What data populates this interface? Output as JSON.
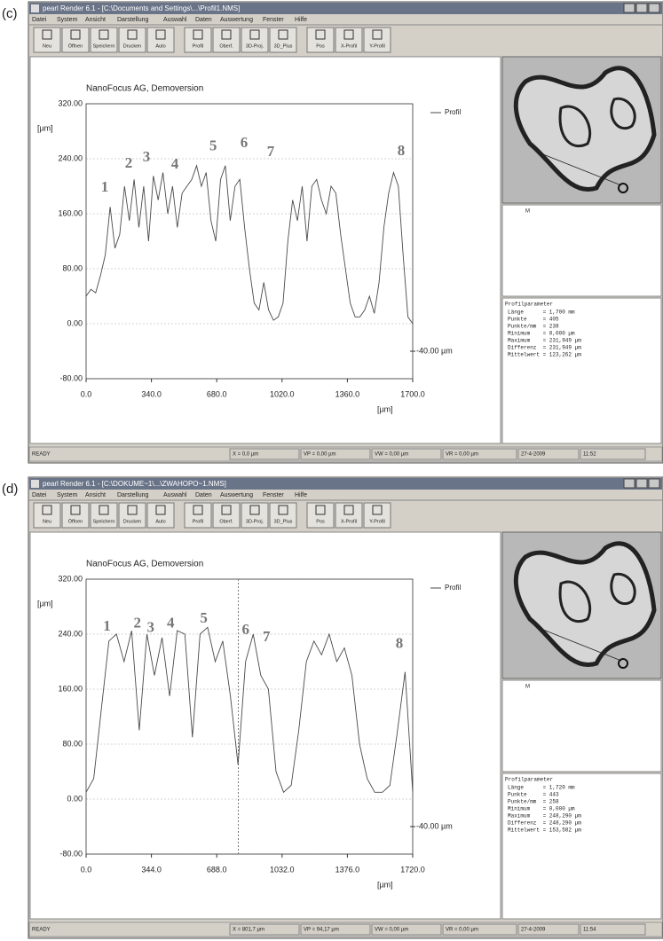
{
  "panels": [
    {
      "label": "(c)",
      "window_title": "pearl Render 6.1 - [C:\\Documents and Settings\\...\\Profil1.NMS]",
      "menu": [
        "Datei",
        "System",
        "Ansicht",
        "Darstellung",
        "Auswahl",
        "Daten",
        "Auswertung",
        "Fenster",
        "Hilfe"
      ],
      "toolbar": [
        "Neu",
        "Öffnen",
        "Speichern",
        "Drucken",
        "Auto",
        "Profil",
        "Oberf.",
        "3D-Proj.",
        "3D_Plus",
        "Pos",
        "X-Profil",
        "Y-Profil"
      ],
      "image_label": "M",
      "params_title": "Profilparameter",
      "params": [
        "Länge      = 1,700 mm",
        "Punkte     = 405",
        "Punkte/mm  = 238",
        "Minimum    = 0,000 µm",
        "Maximum    = 231,949 µm",
        "Differenz  = 231,949 µm",
        "Mittelwert = 123,262 µm"
      ],
      "status": [
        "READY",
        "X = 0,0 µm",
        "VP = 0,00 µm",
        "VW = 0,00 µm",
        "VR = 0,00 µm",
        "27-4-2009",
        "11:52"
      ]
    },
    {
      "label": "(d)",
      "window_title": "pearl Render 6.1 - [C:\\DOKUME~1\\...\\ZWAHOPO~1.NMS]",
      "menu": [
        "Datei",
        "System",
        "Ansicht",
        "Darstellung",
        "Auswahl",
        "Daten",
        "Auswertung",
        "Fenster",
        "Hilfe"
      ],
      "toolbar": [
        "Neu",
        "Öffnen",
        "Speichern",
        "Drucken",
        "Auto",
        "Profil",
        "Oberf.",
        "3D-Proj.",
        "3D_Plus",
        "Pos",
        "X-Profil",
        "Y-Profil"
      ],
      "image_label": "M",
      "params_title": "Profilparameter",
      "params": [
        "Länge      = 1,720 mm",
        "Punkte     = 443",
        "Punkte/mm  = 258",
        "Minimum    = 0,000 µm",
        "Maximum    = 248,290 µm",
        "Differenz  = 248,290 µm",
        "Mittelwert = 153,582 µm"
      ],
      "status": [
        "READY",
        "X = 801,7 µm",
        "VP = 94,17 µm",
        "VW = 0,00 µm",
        "VR = 0,00 µm",
        "27-4-2009",
        "11:54"
      ]
    }
  ],
  "chart_data": [
    {
      "type": "line",
      "title": "NanoFocus AG, Demoversion",
      "y_label": "[µm]",
      "x_label": "[µm]",
      "xlim": [
        0,
        1700
      ],
      "ylim": [
        -80,
        320
      ],
      "grid": true,
      "xticks": [
        {
          "value": 0,
          "label": "0.0"
        },
        {
          "value": 340,
          "label": "340.0"
        },
        {
          "value": 680,
          "label": "680.0"
        },
        {
          "value": 1020,
          "label": "1020.0"
        },
        {
          "value": 1360,
          "label": "1360.0"
        },
        {
          "value": 1700,
          "label": "1700.0"
        }
      ],
      "yticks": [
        {
          "value": 320,
          "label": "320.00"
        },
        {
          "value": 240,
          "label": "240.00"
        },
        {
          "value": 160,
          "label": "160.00"
        },
        {
          "value": 80,
          "label": "80.00"
        },
        {
          "value": 0,
          "label": "0.00"
        },
        {
          "value": -80,
          "label": "-80.00"
        }
      ],
      "x": [
        0,
        25,
        50,
        75,
        100,
        125,
        150,
        175,
        200,
        225,
        250,
        275,
        300,
        325,
        350,
        375,
        400,
        425,
        450,
        475,
        500,
        525,
        550,
        575,
        600,
        625,
        650,
        675,
        700,
        725,
        750,
        775,
        800,
        825,
        850,
        875,
        900,
        925,
        950,
        975,
        1000,
        1025,
        1050,
        1075,
        1100,
        1125,
        1150,
        1175,
        1200,
        1225,
        1250,
        1275,
        1300,
        1325,
        1350,
        1375,
        1400,
        1425,
        1450,
        1475,
        1500,
        1525,
        1550,
        1575,
        1600,
        1625,
        1650,
        1675,
        1700
      ],
      "series": [
        {
          "name": "Profil",
          "color": "#4a4a4a",
          "values": [
            40,
            50,
            45,
            70,
            100,
            170,
            110,
            130,
            200,
            150,
            210,
            140,
            200,
            120,
            215,
            180,
            220,
            160,
            200,
            140,
            190,
            200,
            210,
            230,
            200,
            220,
            150,
            120,
            210,
            230,
            150,
            200,
            210,
            140,
            80,
            30,
            20,
            60,
            20,
            5,
            10,
            30,
            120,
            180,
            150,
            200,
            120,
            200,
            210,
            180,
            160,
            200,
            190,
            130,
            80,
            30,
            10,
            10,
            20,
            40,
            15,
            60,
            140,
            190,
            220,
            200,
            100,
            10,
            0
          ]
        }
      ],
      "annotations": [
        {
          "text": "1",
          "x": 97,
          "y": 197
        },
        {
          "text": "2",
          "x": 222,
          "y": 232
        },
        {
          "text": "3",
          "x": 314,
          "y": 241
        },
        {
          "text": "4",
          "x": 462,
          "y": 231
        },
        {
          "text": "5",
          "x": 661,
          "y": 257
        },
        {
          "text": "6",
          "x": 822,
          "y": 262
        },
        {
          "text": "7",
          "x": 961,
          "y": 249
        },
        {
          "text": "8",
          "x": 1640,
          "y": 250
        }
      ],
      "marker": {
        "value": -40,
        "label": "-40.00 µm"
      }
    },
    {
      "type": "line",
      "title": "NanoFocus AG, Demoversion",
      "y_label": "[µm]",
      "x_label": "[µm]",
      "xlim": [
        0,
        1720
      ],
      "ylim": [
        -80,
        320
      ],
      "grid": true,
      "xticks": [
        {
          "value": 0,
          "label": "0.0"
        },
        {
          "value": 344,
          "label": "344.0"
        },
        {
          "value": 688,
          "label": "688.0"
        },
        {
          "value": 1032,
          "label": "1032.0"
        },
        {
          "value": 1376,
          "label": "1376.0"
        },
        {
          "value": 1720,
          "label": "1720.0"
        }
      ],
      "yticks": [
        {
          "value": 320,
          "label": "320.00"
        },
        {
          "value": 240,
          "label": "240.00"
        },
        {
          "value": 160,
          "label": "160.00"
        },
        {
          "value": 80,
          "label": "80.00"
        },
        {
          "value": 0,
          "label": "0.00"
        },
        {
          "value": -80,
          "label": "-80.00"
        }
      ],
      "x": [
        0,
        40,
        80,
        120,
        160,
        200,
        240,
        280,
        320,
        360,
        400,
        440,
        480,
        520,
        560,
        600,
        640,
        680,
        720,
        760,
        800,
        840,
        880,
        920,
        960,
        1000,
        1040,
        1080,
        1120,
        1160,
        1200,
        1240,
        1280,
        1320,
        1360,
        1400,
        1440,
        1480,
        1520,
        1560,
        1600,
        1640,
        1680,
        1720
      ],
      "series": [
        {
          "name": "Profil",
          "color": "#4a4a4a",
          "values": [
            10,
            30,
            130,
            230,
            240,
            200,
            245,
            100,
            240,
            180,
            235,
            150,
            245,
            240,
            90,
            240,
            250,
            200,
            230,
            150,
            50,
            200,
            240,
            180,
            160,
            40,
            10,
            20,
            100,
            200,
            230,
            210,
            240,
            200,
            220,
            180,
            80,
            30,
            10,
            10,
            20,
            100,
            185,
            10
          ]
        }
      ],
      "annotations": [
        {
          "text": "1",
          "x": 110,
          "y": 250
        },
        {
          "text": "2",
          "x": 270,
          "y": 255
        },
        {
          "text": "3",
          "x": 340,
          "y": 248
        },
        {
          "text": "4",
          "x": 445,
          "y": 255
        },
        {
          "text": "5",
          "x": 620,
          "y": 262
        },
        {
          "text": "6",
          "x": 840,
          "y": 245
        },
        {
          "text": "7",
          "x": 950,
          "y": 235
        },
        {
          "text": "8",
          "x": 1650,
          "y": 225
        }
      ],
      "marker": {
        "value": -40,
        "label": "-40.00 µm"
      },
      "cursor_x": 801.7
    }
  ]
}
